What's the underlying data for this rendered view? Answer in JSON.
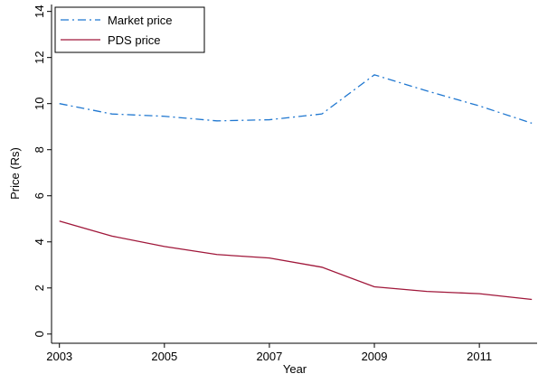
{
  "chart_data": {
    "type": "line",
    "x": [
      2003,
      2004,
      2005,
      2006,
      2007,
      2008,
      2009,
      2010,
      2011,
      2012
    ],
    "series": [
      {
        "name": "Market price",
        "color": "#1f77d0",
        "linestyle": "dashdot",
        "values": [
          10.0,
          9.55,
          9.45,
          9.25,
          9.3,
          9.55,
          11.25,
          10.55,
          9.9,
          9.15
        ]
      },
      {
        "name": "PDS price",
        "color": "#a0173a",
        "linestyle": "solid",
        "values": [
          4.9,
          4.25,
          3.8,
          3.45,
          3.3,
          2.9,
          2.05,
          1.85,
          1.75,
          1.5
        ]
      }
    ],
    "xlabel": "Year",
    "ylabel": "Price (Rs)",
    "xlim": [
      2002.85,
      2012.1
    ],
    "xticks": [
      2003,
      2005,
      2007,
      2009,
      2011
    ],
    "ylim": [
      -0.4,
      14.3
    ],
    "yticks": [
      0,
      2,
      4,
      6,
      8,
      10,
      12,
      14
    ],
    "grid": false,
    "legend": "upper left"
  }
}
